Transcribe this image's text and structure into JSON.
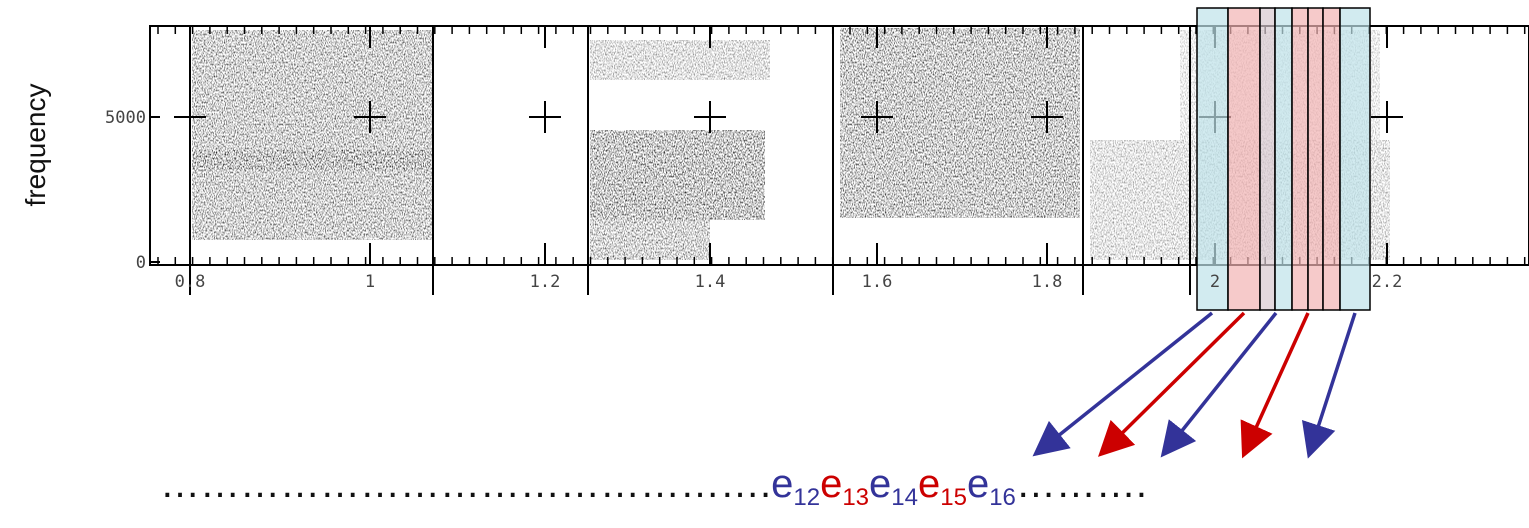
{
  "y_label": "frequency",
  "y_ticks": [
    "5000",
    "0"
  ],
  "x_ticks": [
    "0.8",
    "1",
    "1.2",
    "1.4",
    "1.6",
    "1.8",
    "2",
    "2.2"
  ],
  "sequence": {
    "prefix": "……………………………………….",
    "items": [
      {
        "base": "e",
        "sub": "12",
        "color": "#333399"
      },
      {
        "base": "e",
        "sub": "13",
        "color": "#cc0000"
      },
      {
        "base": "e",
        "sub": "14",
        "color": "#333399"
      },
      {
        "base": "e",
        "sub": "15",
        "color": "#cc0000"
      },
      {
        "base": "e",
        "sub": "16",
        "color": "#333399"
      }
    ],
    "suffix": "………."
  }
}
